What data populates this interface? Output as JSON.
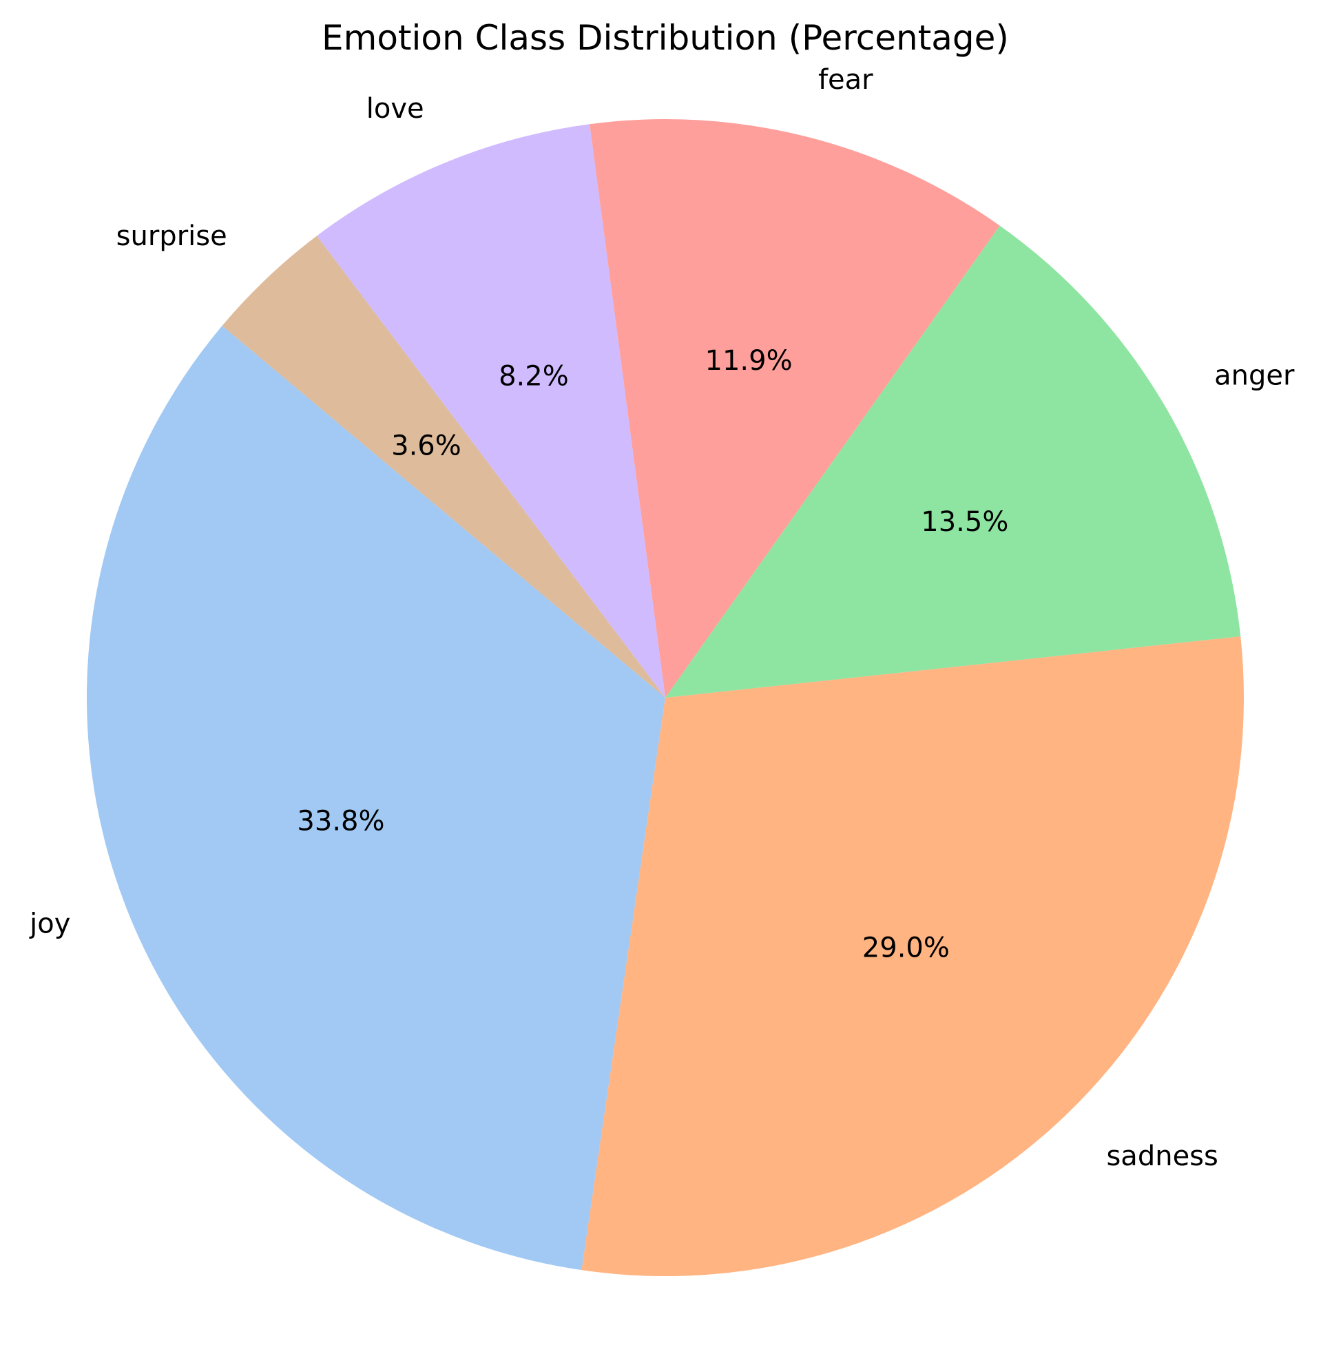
{
  "chart_data": {
    "type": "pie",
    "title": "Emotion Class Distribution (Percentage)",
    "start_angle_deg": 140,
    "direction": "counterclockwise",
    "slices": [
      {
        "label": "joy",
        "value": 33.8,
        "pct_text": "33.8%",
        "color": "#a1c9f4"
      },
      {
        "label": "sadness",
        "value": 29.0,
        "pct_text": "29.0%",
        "color": "#ffb482"
      },
      {
        "label": "anger",
        "value": 13.5,
        "pct_text": "13.5%",
        "color": "#8de5a1"
      },
      {
        "label": "fear",
        "value": 11.9,
        "pct_text": "11.9%",
        "color": "#ff9f9b"
      },
      {
        "label": "love",
        "value": 8.2,
        "pct_text": "8.2%",
        "color": "#d0bbff"
      },
      {
        "label": "surprise",
        "value": 3.6,
        "pct_text": "3.6%",
        "color": "#debb9b"
      }
    ]
  }
}
